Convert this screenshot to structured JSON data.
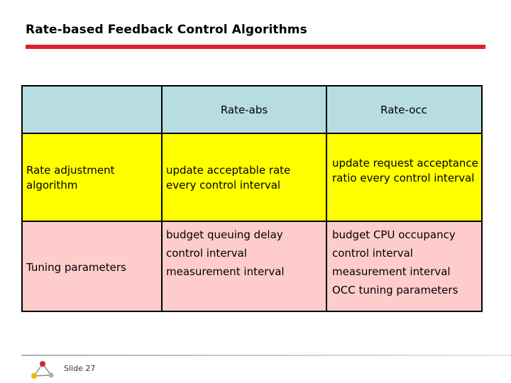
{
  "slide": {
    "title": "Rate-based Feedback Control Algorithms",
    "number_label": "Slide 27"
  },
  "table": {
    "columns": [
      "",
      "Rate-abs",
      "Rate-occ"
    ],
    "rows": [
      {
        "label": "Rate adjustment algorithm",
        "rate_abs": [
          "update acceptable rate every control interval"
        ],
        "rate_occ": [
          "update request acceptance ratio every control interval"
        ]
      },
      {
        "label": "Tuning parameters",
        "rate_abs": [
          "budget queuing delay",
          "control interval",
          "measurement interval"
        ],
        "rate_occ": [
          "budget CPU occupancy",
          "control interval",
          "measurement interval",
          "OCC tuning parameters"
        ]
      }
    ]
  },
  "colors": {
    "accent": "#d9232e",
    "header": "#b7dde3",
    "row1": "#ffff00",
    "row2": "#ffcccc"
  },
  "icons": {
    "logo": "network-nodes-logo-icon"
  }
}
